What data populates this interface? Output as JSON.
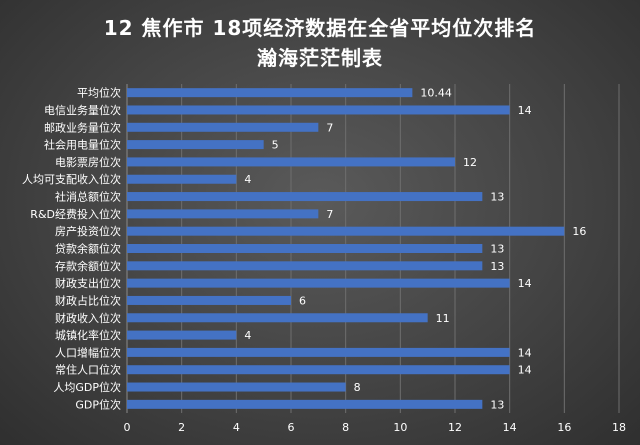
{
  "chart_data": {
    "type": "bar",
    "orientation": "horizontal",
    "title_lines": [
      "12 焦作市  18项经济数据在全省平均位次排名",
      "瀚海茫茫制表"
    ],
    "categories": [
      "平均位次",
      "电信业务量位次",
      "邮政业务量位次",
      "社会用电量位次",
      "电影票房位次",
      "人均可支配收入位次",
      "社消总额位次",
      "R&D经费投入位次",
      "房产投资位次",
      "贷款余额位次",
      "存款余额位次",
      "财政支出位次",
      "财政占比位次",
      "财政收入位次",
      "城镇化率位次",
      "人口增幅位次",
      "常住人口位次",
      "人均GDP位次",
      "GDP位次"
    ],
    "values": [
      10.44,
      14,
      7,
      5,
      12,
      4,
      13,
      7,
      16,
      13,
      13,
      14,
      6,
      11,
      4,
      14,
      14,
      8,
      13
    ],
    "value_labels": [
      "10.44",
      "14",
      "7",
      "5",
      "12",
      "4",
      "13",
      "7",
      "16",
      "13",
      "13",
      "14",
      "6",
      "11",
      "4",
      "14",
      "14",
      "8",
      "13"
    ],
    "xlim": [
      0,
      18
    ],
    "x_ticks": [
      "0",
      "2",
      "4",
      "6",
      "8",
      "10",
      "12",
      "14",
      "16",
      "18"
    ],
    "bar_color": "#4472c4",
    "grid": "vertical",
    "legend": "none"
  }
}
